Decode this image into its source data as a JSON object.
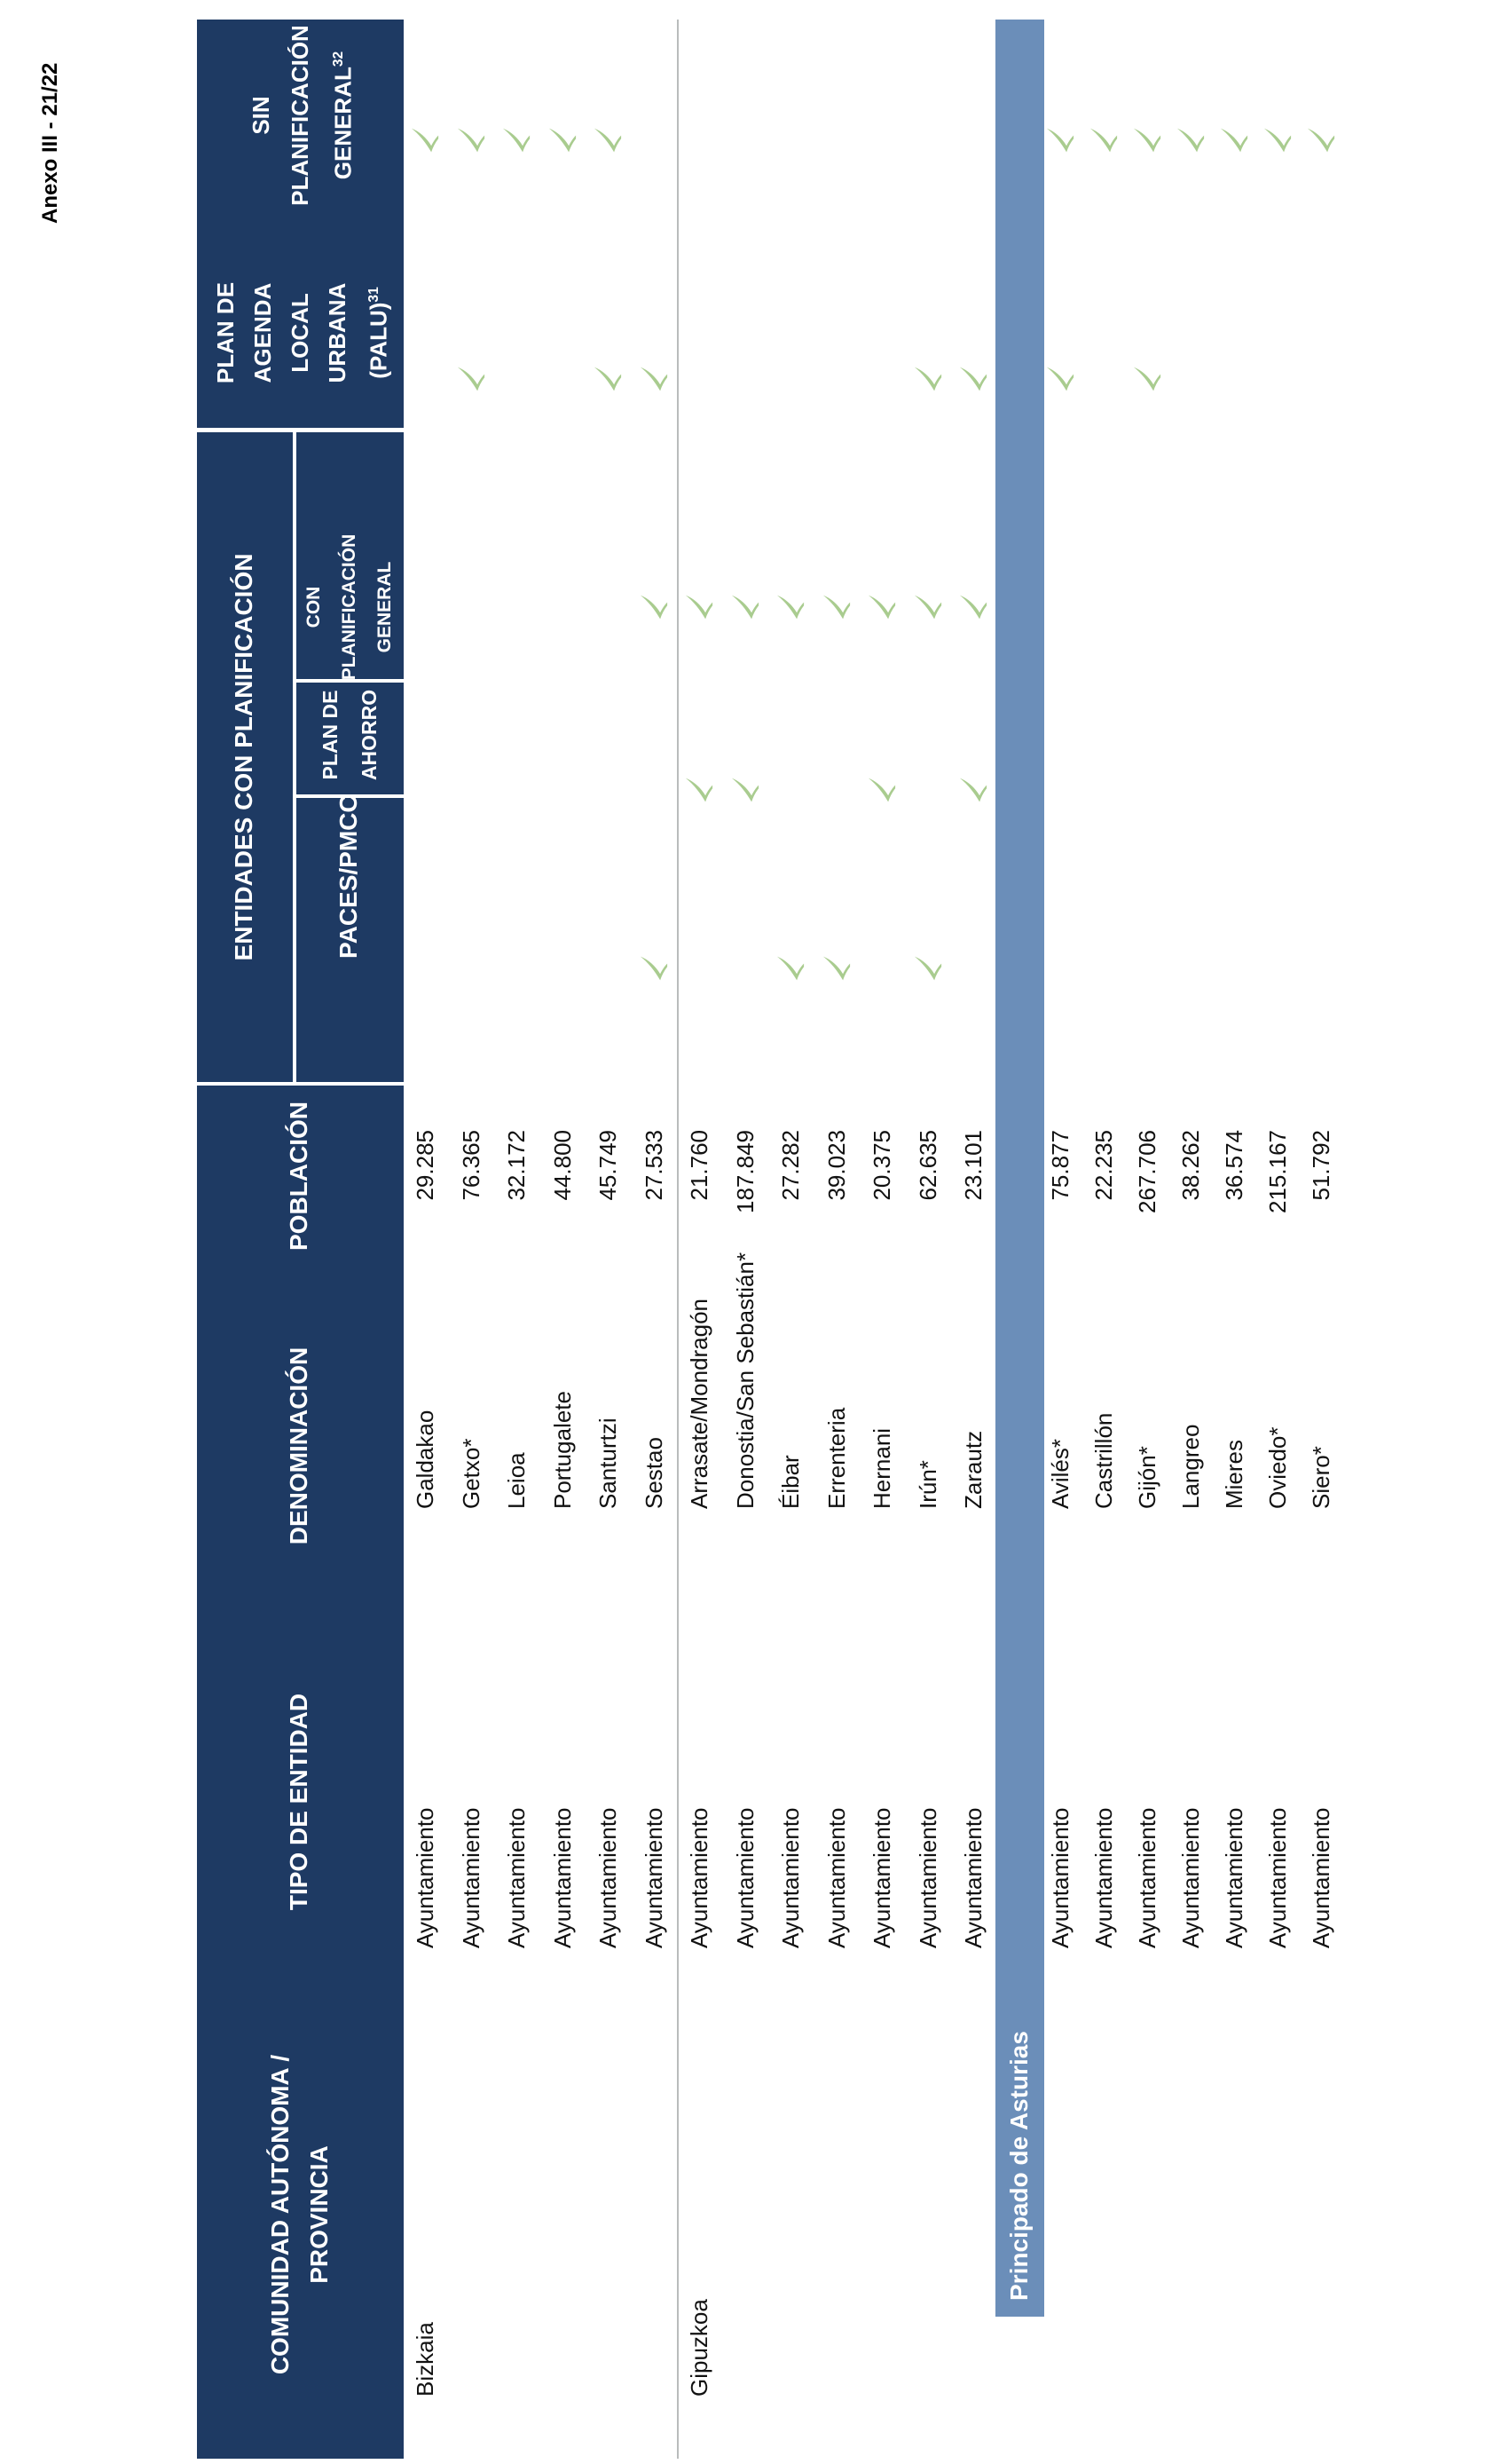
{
  "page": {
    "annex_label": "Anexo III - 21/22"
  },
  "colors": {
    "header_navy": "#1e3a63",
    "section_band_blue": "#6b8eb9",
    "check_green": "#a9cc8f",
    "separator_gray": "#b9bcbc"
  },
  "headers": {
    "comunidad": {
      "l1": "COMUNIDAD AUTÓNOMA /",
      "l2": "PROVINCIA"
    },
    "tipo": "TIPO DE ENTIDAD",
    "denominacion": "DENOMINACIÓN",
    "poblacion": "POBLACIÓN",
    "entidades_group": "ENTIDADES CON PLANIFICACIÓN",
    "paces": "PACES/PMCC",
    "ahorro": {
      "l1": "PLAN DE",
      "l2": "AHORRO"
    },
    "con_planificacion": {
      "l1": "CON",
      "l2": "PLANIFICACIÓN",
      "l3": "GENERAL"
    },
    "palu": {
      "l1": "PLAN DE",
      "l2": "AGENDA",
      "l3": "LOCAL",
      "l4": "URBANA",
      "l5": "(PALU)",
      "sup": "31"
    },
    "sin": {
      "l1": "SIN",
      "l2": "PLANIFICACIÓN",
      "l3": "GENERAL",
      "sup": "32"
    }
  },
  "groups": [
    {
      "label": "Bizkaia",
      "style": "province",
      "rows": [
        {
          "denominacion": "Galdakao",
          "tipo": "Ayuntamiento",
          "poblacion": "29.285",
          "paces": false,
          "plan_ahorro": false,
          "con_planificacion_general": false,
          "palu": false,
          "sin_planificacion_general": true
        },
        {
          "denominacion": "Getxo*",
          "tipo": "Ayuntamiento",
          "poblacion": "76.365",
          "paces": false,
          "plan_ahorro": false,
          "con_planificacion_general": false,
          "palu": true,
          "sin_planificacion_general": true
        },
        {
          "denominacion": "Leioa",
          "tipo": "Ayuntamiento",
          "poblacion": "32.172",
          "paces": false,
          "plan_ahorro": false,
          "con_planificacion_general": false,
          "palu": false,
          "sin_planificacion_general": true
        },
        {
          "denominacion": "Portugalete",
          "tipo": "Ayuntamiento",
          "poblacion": "44.800",
          "paces": false,
          "plan_ahorro": false,
          "con_planificacion_general": false,
          "palu": false,
          "sin_planificacion_general": true
        },
        {
          "denominacion": "Santurtzi",
          "tipo": "Ayuntamiento",
          "poblacion": "45.749",
          "paces": false,
          "plan_ahorro": false,
          "con_planificacion_general": false,
          "palu": true,
          "sin_planificacion_general": true
        },
        {
          "denominacion": "Sestao",
          "tipo": "Ayuntamiento",
          "poblacion": "27.533",
          "paces": true,
          "plan_ahorro": false,
          "con_planificacion_general": true,
          "palu": true,
          "sin_planificacion_general": false
        }
      ]
    },
    {
      "label": "Gipuzkoa",
      "style": "province",
      "rows": [
        {
          "denominacion": "Arrasate/Mondragón",
          "tipo": "Ayuntamiento",
          "poblacion": "21.760",
          "paces": false,
          "plan_ahorro": true,
          "con_planificacion_general": true,
          "palu": false,
          "sin_planificacion_general": false
        },
        {
          "denominacion": "Donostia/San Sebastián*",
          "tipo": "Ayuntamiento",
          "poblacion": "187.849",
          "paces": false,
          "plan_ahorro": true,
          "con_planificacion_general": true,
          "palu": false,
          "sin_planificacion_general": false
        },
        {
          "denominacion": "Éibar",
          "tipo": "Ayuntamiento",
          "poblacion": "27.282",
          "paces": true,
          "plan_ahorro": false,
          "con_planificacion_general": true,
          "palu": false,
          "sin_planificacion_general": false
        },
        {
          "denominacion": "Errenteria",
          "tipo": "Ayuntamiento",
          "poblacion": "39.023",
          "paces": true,
          "plan_ahorro": false,
          "con_planificacion_general": true,
          "palu": false,
          "sin_planificacion_general": false
        },
        {
          "denominacion": "Hernani",
          "tipo": "Ayuntamiento",
          "poblacion": "20.375",
          "paces": false,
          "plan_ahorro": true,
          "con_planificacion_general": true,
          "palu": false,
          "sin_planificacion_general": false
        },
        {
          "denominacion": "Irún*",
          "tipo": "Ayuntamiento",
          "poblacion": "62.635",
          "paces": true,
          "plan_ahorro": false,
          "con_planificacion_general": true,
          "palu": true,
          "sin_planificacion_general": false
        },
        {
          "denominacion": "Zarautz",
          "tipo": "Ayuntamiento",
          "poblacion": "23.101",
          "paces": false,
          "plan_ahorro": true,
          "con_planificacion_general": true,
          "palu": true,
          "sin_planificacion_general": false
        }
      ]
    },
    {
      "label": "Principado de Asturias",
      "style": "band",
      "rows": [
        {
          "denominacion": "Avilés*",
          "tipo": "Ayuntamiento",
          "poblacion": "75.877",
          "paces": false,
          "plan_ahorro": false,
          "con_planificacion_general": false,
          "palu": true,
          "sin_planificacion_general": true
        },
        {
          "denominacion": "Castrillón",
          "tipo": "Ayuntamiento",
          "poblacion": "22.235",
          "paces": false,
          "plan_ahorro": false,
          "con_planificacion_general": false,
          "palu": false,
          "sin_planificacion_general": true
        },
        {
          "denominacion": "Gijón*",
          "tipo": "Ayuntamiento",
          "poblacion": "267.706",
          "paces": false,
          "plan_ahorro": false,
          "con_planificacion_general": false,
          "palu": true,
          "sin_planificacion_general": true
        },
        {
          "denominacion": "Langreo",
          "tipo": "Ayuntamiento",
          "poblacion": "38.262",
          "paces": false,
          "plan_ahorro": false,
          "con_planificacion_general": false,
          "palu": false,
          "sin_planificacion_general": true
        },
        {
          "denominacion": "Mieres",
          "tipo": "Ayuntamiento",
          "poblacion": "36.574",
          "paces": false,
          "plan_ahorro": false,
          "con_planificacion_general": false,
          "palu": false,
          "sin_planificacion_general": true
        },
        {
          "denominacion": "Oviedo*",
          "tipo": "Ayuntamiento",
          "poblacion": "215.167",
          "paces": false,
          "plan_ahorro": false,
          "con_planificacion_general": false,
          "palu": false,
          "sin_planificacion_general": true
        },
        {
          "denominacion": "Siero*",
          "tipo": "Ayuntamiento",
          "poblacion": "51.792",
          "paces": false,
          "plan_ahorro": false,
          "con_planificacion_general": false,
          "palu": false,
          "sin_planificacion_general": true
        }
      ]
    }
  ]
}
